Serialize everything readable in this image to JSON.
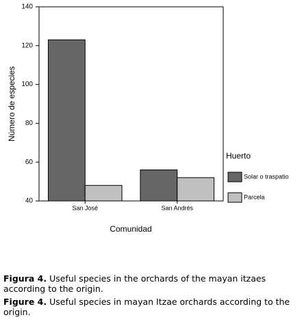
{
  "chart_data": {
    "type": "bar",
    "y_label": "Número de especies",
    "x_label": "Comunidad",
    "categories": [
      "San José",
      "San Andrés"
    ],
    "series": [
      {
        "name": "Solar o traspatio",
        "color": "#666666",
        "values": [
          123,
          56
        ]
      },
      {
        "name": "Parcela",
        "color": "#c0c0c0",
        "values": [
          48,
          52
        ]
      }
    ],
    "ylim": [
      40,
      140
    ],
    "yticks": [
      40,
      60,
      80,
      100,
      120,
      140
    ],
    "legend_title": "Huerto",
    "legend": "right",
    "grid": false
  },
  "caption": [
    {
      "label": "Figura 4.",
      "text": "Useful species in the orchards of the mayan itzaes according to the origin."
    },
    {
      "label": "Figure 4.",
      "text": "Useful species in mayan Itzae orchards according to the origin."
    }
  ]
}
